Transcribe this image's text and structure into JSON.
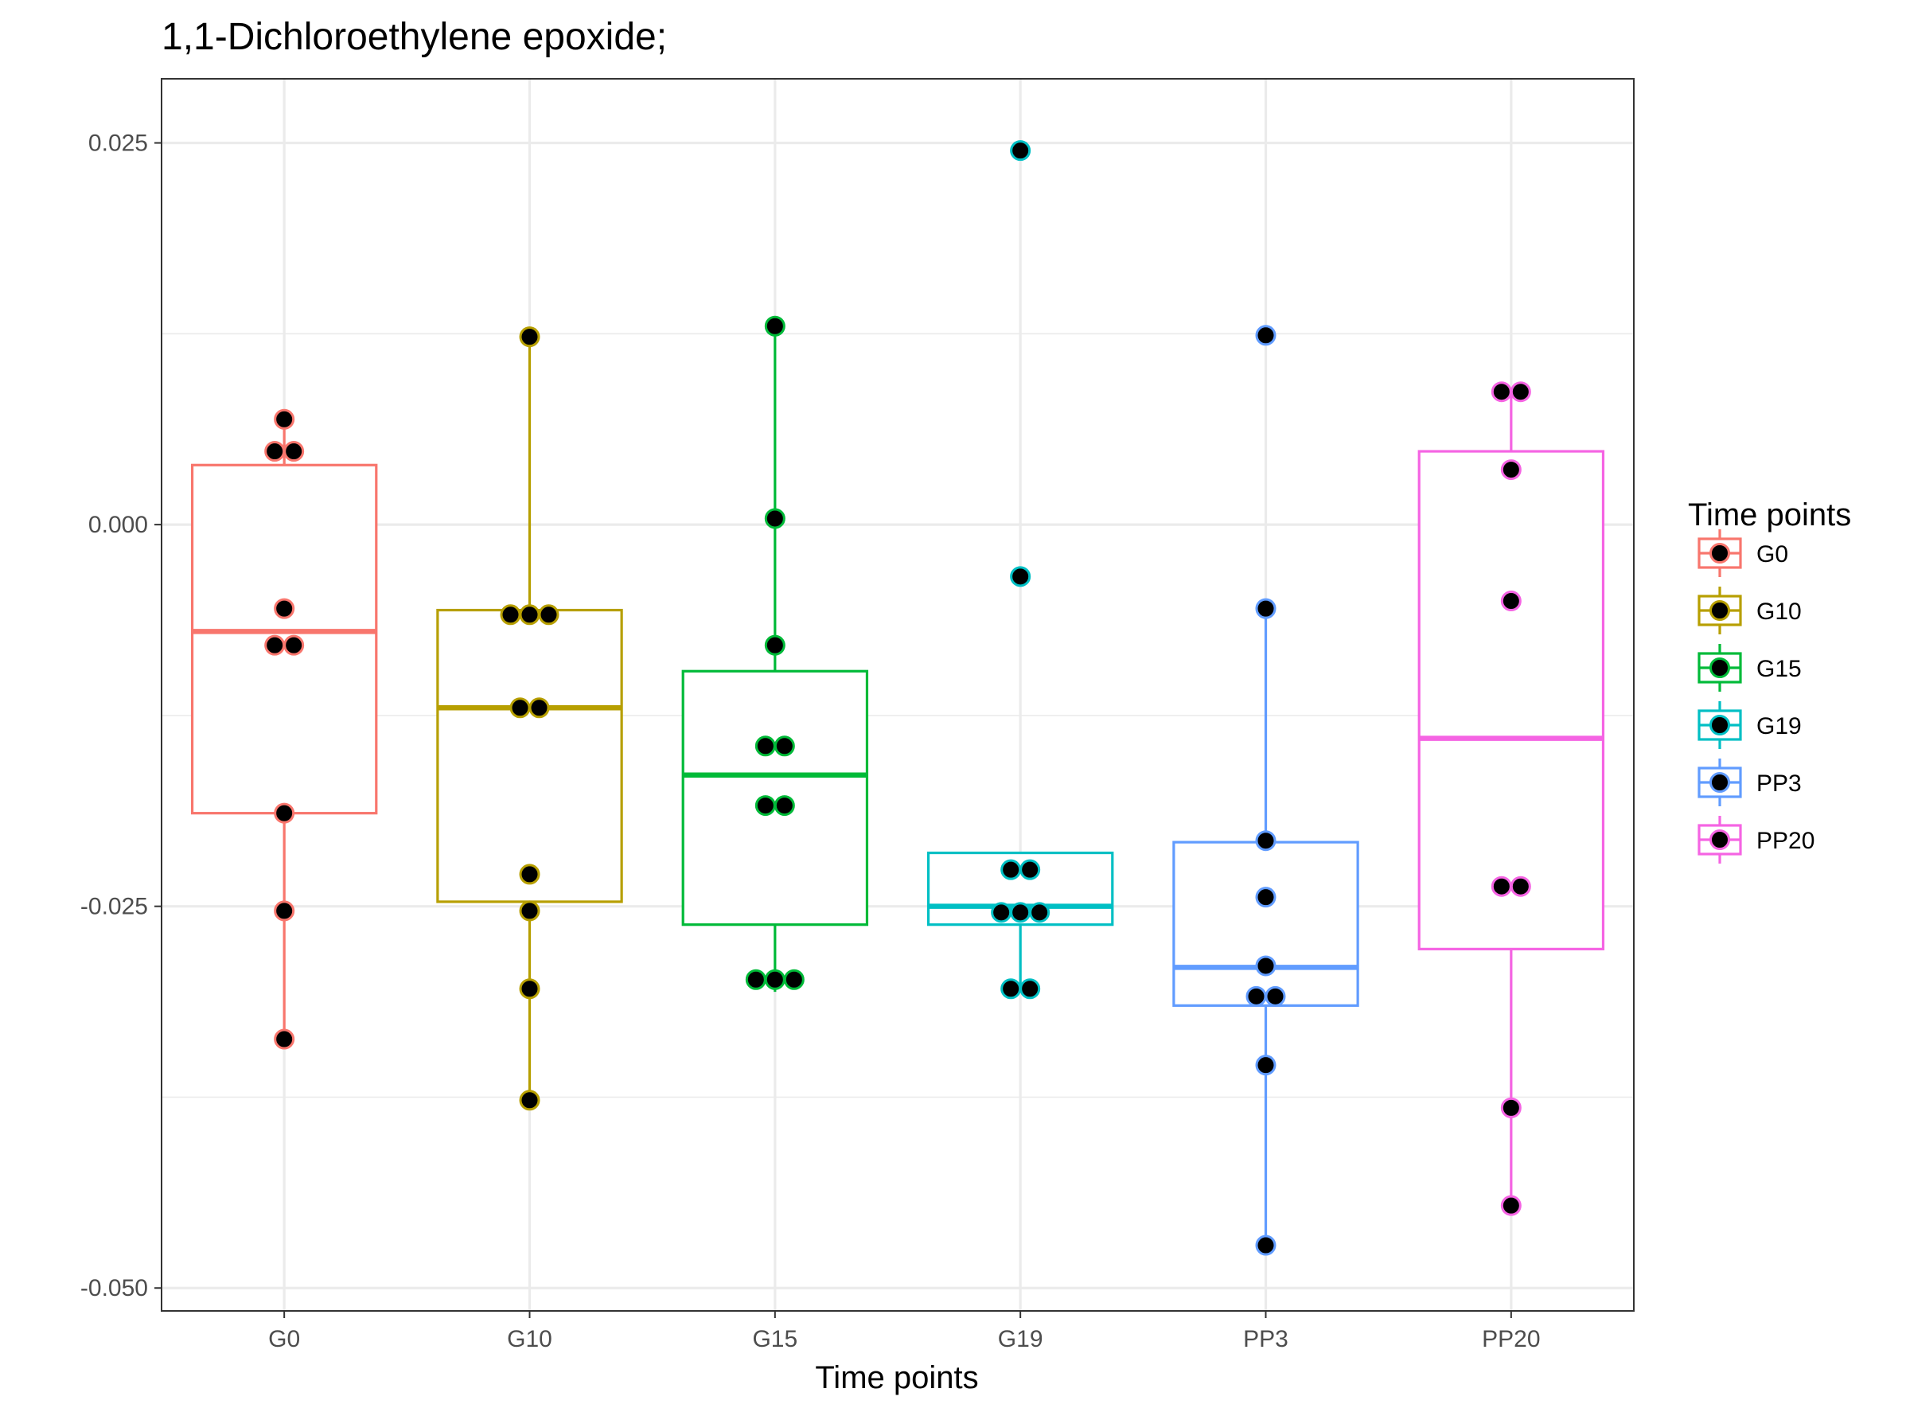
{
  "chart_data": {
    "type": "boxplot",
    "title": "1,1-Dichloroethylene epoxide;",
    "xlabel": "Time points",
    "ylabel": "",
    "categories": [
      "G0",
      "G10",
      "G15",
      "G19",
      "PP3",
      "PP20"
    ],
    "ylim": [
      -0.0515,
      0.0292
    ],
    "y_ticks": [
      -0.05,
      -0.025,
      0.0,
      0.025
    ],
    "y_tick_labels": [
      "-0.050",
      "-0.025",
      "0.000",
      "0.025"
    ],
    "grid": true,
    "legend": {
      "title": "Time points",
      "position": "right",
      "entries": [
        "G0",
        "G10",
        "G15",
        "G19",
        "PP3",
        "PP20"
      ]
    },
    "colors": {
      "G0": "#F8766D",
      "G10": "#B79F00",
      "G15": "#00BA38",
      "G19": "#00BFC4",
      "PP3": "#619CFF",
      "PP20": "#F564E3"
    },
    "boxes": [
      {
        "category": "G0",
        "whisker_low": -0.0337,
        "q1": -0.0189,
        "median": -0.007,
        "q3": 0.0039,
        "whisker_high": 0.0069
      },
      {
        "category": "G10",
        "whisker_low": -0.0377,
        "q1": -0.0247,
        "median": -0.012,
        "q3": -0.0056,
        "whisker_high": 0.0123
      },
      {
        "category": "G15",
        "whisker_low": -0.0306,
        "q1": -0.0262,
        "median": -0.0164,
        "q3": -0.0096,
        "whisker_high": 0.013
      },
      {
        "category": "G19",
        "whisker_low": -0.0305,
        "q1": -0.0262,
        "median": -0.025,
        "q3": -0.0215,
        "whisker_high": -0.0215
      },
      {
        "category": "PP3",
        "whisker_low": -0.0472,
        "q1": -0.0315,
        "median": -0.029,
        "q3": -0.0208,
        "whisker_high": -0.0054
      },
      {
        "category": "PP20",
        "whisker_low": -0.0446,
        "q1": -0.0278,
        "median": -0.014,
        "q3": 0.0048,
        "whisker_high": 0.0087
      }
    ],
    "points": [
      {
        "category": "G0",
        "values": [
          0.0069,
          0.0048,
          0.0048,
          -0.0055,
          -0.0079,
          -0.0079,
          -0.0189,
          -0.0253,
          -0.0337
        ]
      },
      {
        "category": "G10",
        "values": [
          0.0123,
          -0.0059,
          -0.0059,
          -0.0059,
          -0.012,
          -0.012,
          -0.0229,
          -0.0253,
          -0.0304,
          -0.0377
        ]
      },
      {
        "category": "G15",
        "values": [
          0.013,
          0.0004,
          -0.0079,
          -0.0145,
          -0.0145,
          -0.0184,
          -0.0184,
          -0.0298,
          -0.0298,
          -0.0298
        ]
      },
      {
        "category": "G19",
        "values": [
          0.0245,
          -0.0034,
          -0.0226,
          -0.0226,
          -0.0254,
          -0.0254,
          -0.0254,
          -0.0304,
          -0.0304
        ]
      },
      {
        "category": "PP3",
        "values": [
          0.0124,
          -0.0055,
          -0.0207,
          -0.0244,
          -0.0289,
          -0.0309,
          -0.0309,
          -0.0354,
          -0.0472
        ]
      },
      {
        "category": "PP20",
        "values": [
          0.0087,
          0.0087,
          0.0036,
          -0.005,
          -0.0237,
          -0.0237,
          -0.0382,
          -0.0446
        ]
      }
    ]
  }
}
